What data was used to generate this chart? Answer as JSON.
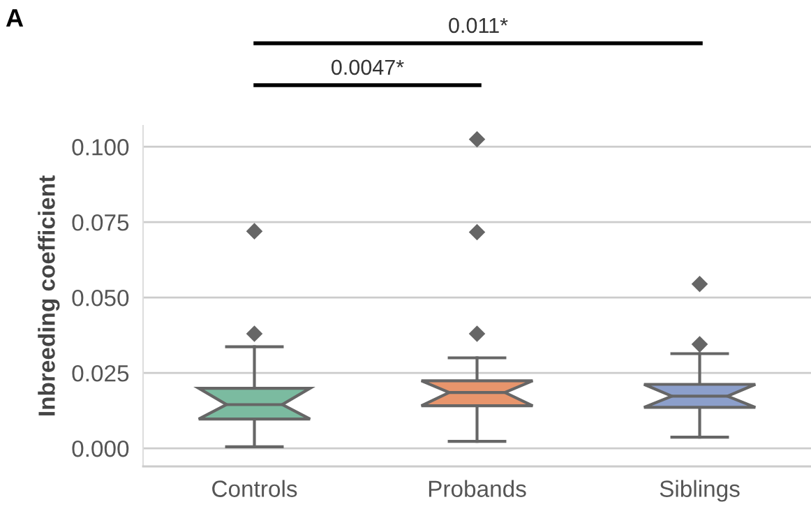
{
  "chart_data": {
    "type": "box",
    "title": "A",
    "ylabel": "Inbreeding coefficient",
    "categories": [
      "Controls",
      "Probands",
      "Siblings"
    ],
    "colors": [
      "#7bbba0",
      "#e8956c",
      "#8c9fcb"
    ],
    "boxes": [
      {
        "low": 0.0005,
        "q1": 0.0097,
        "median": 0.0145,
        "q3": 0.0199,
        "high": 0.0337,
        "outliers": [
          0.072,
          0.038
        ]
      },
      {
        "low": 0.0023,
        "q1": 0.0141,
        "median": 0.0185,
        "q3": 0.0224,
        "high": 0.03,
        "outliers": [
          0.1025,
          0.0717,
          0.038
        ]
      },
      {
        "low": 0.0037,
        "q1": 0.0136,
        "median": 0.0173,
        "q3": 0.0212,
        "high": 0.0314,
        "outliers": [
          0.0545,
          0.0345
        ]
      }
    ],
    "ylim": [
      -0.006,
      0.107
    ],
    "yticks": [
      {
        "value": 0,
        "label": "0.000"
      },
      {
        "value": 0.025,
        "label": "0.025"
      },
      {
        "value": 0.05,
        "label": "0.050"
      },
      {
        "value": 0.075,
        "label": "0.075"
      },
      {
        "value": 0.1,
        "label": "0.100"
      }
    ],
    "grid": "y",
    "marker": "diamond",
    "annotations": [
      "0.0047*",
      "0.011*"
    ]
  }
}
